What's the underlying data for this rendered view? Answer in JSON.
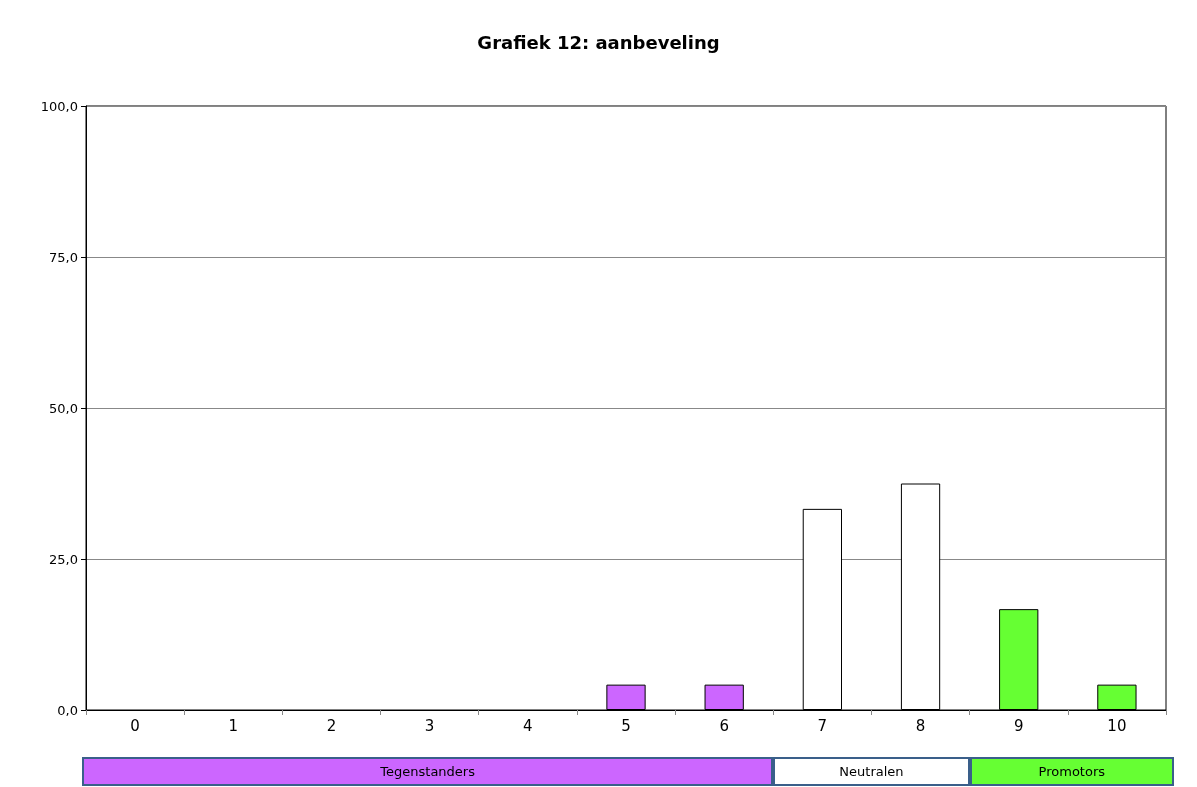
{
  "chart_data": {
    "type": "bar",
    "title": "Grafiek 12: aanbeveling",
    "categories": [
      "0",
      "1",
      "2",
      "3",
      "4",
      "5",
      "6",
      "7",
      "8",
      "9",
      "10"
    ],
    "values": [
      0,
      0,
      0,
      0,
      0,
      4.2,
      4.2,
      33.3,
      37.5,
      16.7,
      4.2
    ],
    "colors": [
      "#cc66ff",
      "#cc66ff",
      "#cc66ff",
      "#cc66ff",
      "#cc66ff",
      "#cc66ff",
      "#cc66ff",
      "#ffffff",
      "#ffffff",
      "#66ff33",
      "#66ff33"
    ],
    "ylim": [
      0,
      100
    ],
    "yticks": [
      {
        "value": 0,
        "label": "0,0"
      },
      {
        "value": 25,
        "label": "25,0"
      },
      {
        "value": 50,
        "label": "50,0"
      },
      {
        "value": 75,
        "label": "75,0"
      },
      {
        "value": 100,
        "label": "100,0"
      }
    ],
    "grid": "y",
    "annotations": [
      "Tegenstanders",
      "Neutralen",
      "Promotors"
    ]
  }
}
